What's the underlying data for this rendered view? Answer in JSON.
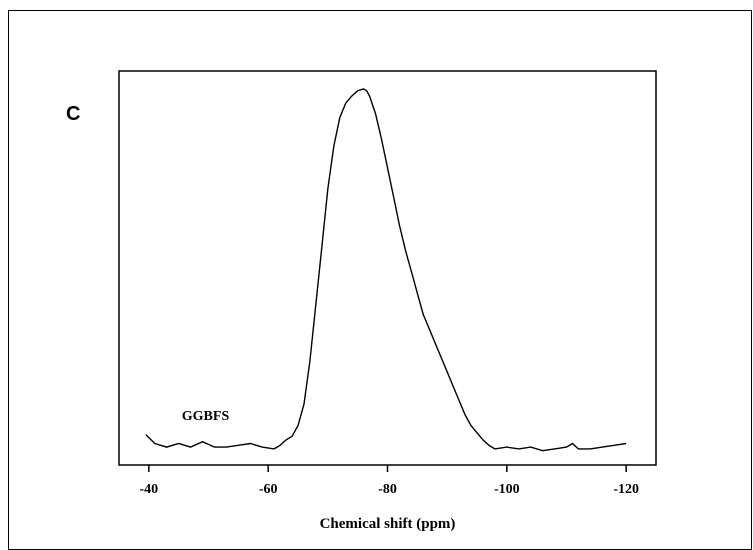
{
  "panel_label": "C",
  "chart_data": {
    "type": "line",
    "title": "",
    "xlabel": "Chemical shift (ppm)",
    "ylabel": "",
    "xlim": [
      -35,
      -125
    ],
    "ylim": [
      -0.05,
      1.05
    ],
    "xticks": [
      -40,
      -60,
      -80,
      -100,
      -120
    ],
    "xtick_labels": [
      "-40",
      "-60",
      "-80",
      "-100",
      "-120"
    ],
    "grid": false,
    "annotations": [
      {
        "text": "GGBFS",
        "x": -49.5,
        "y": 0.075
      }
    ],
    "series": [
      {
        "name": "",
        "x": [
          -39.5,
          -41,
          -43,
          -45,
          -47,
          -49,
          -51,
          -53,
          -55,
          -57,
          -59,
          -61,
          -62,
          -63,
          -64,
          -65,
          -66,
          -67,
          -68,
          -69,
          -70,
          -71,
          -72,
          -73,
          -74,
          -75,
          -76,
          -76.5,
          -77,
          -78,
          -79,
          -80,
          -81,
          -82,
          -83,
          -84,
          -85,
          -86,
          -87,
          -88,
          -89,
          -90,
          -91,
          -92,
          -93,
          -94,
          -95,
          -96,
          -97,
          -98,
          -100,
          -102,
          -104,
          -106,
          -108,
          -110,
          -111,
          -112,
          -114,
          -116,
          -118,
          -120
        ],
        "y": [
          0.035,
          0.01,
          0.0,
          0.01,
          0.0,
          0.015,
          0.0,
          0.0,
          0.005,
          0.01,
          0.0,
          -0.005,
          0.005,
          0.02,
          0.03,
          0.06,
          0.12,
          0.24,
          0.4,
          0.56,
          0.72,
          0.84,
          0.92,
          0.96,
          0.98,
          0.995,
          1.0,
          0.995,
          0.98,
          0.93,
          0.86,
          0.78,
          0.7,
          0.62,
          0.55,
          0.49,
          0.43,
          0.37,
          0.33,
          0.29,
          0.25,
          0.21,
          0.17,
          0.13,
          0.09,
          0.06,
          0.04,
          0.02,
          0.005,
          -0.005,
          0.0,
          -0.005,
          0.0,
          -0.01,
          -0.005,
          0.0,
          0.01,
          -0.005,
          -0.005,
          0.0,
          0.005,
          0.01
        ]
      }
    ]
  }
}
